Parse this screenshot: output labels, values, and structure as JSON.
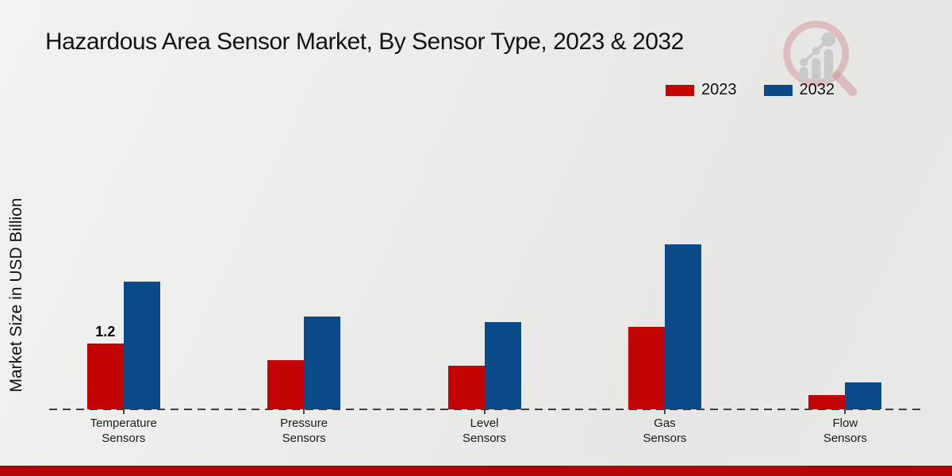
{
  "title": "Hazardous Area Sensor Market, By Sensor Type, 2023 & 2032",
  "ylabel": "Market Size in USD Billion",
  "colors": {
    "bar_2023": "#c20404",
    "bar_2032": "#0a4a88",
    "footer_strip": "#b50404",
    "baseline": "#3d3d3d",
    "watermark_ring": "#c97a83",
    "watermark_gray": "#c6c6c6"
  },
  "legend": {
    "position": "top-right"
  },
  "chart_data": {
    "type": "bar",
    "title": "Hazardous Area Sensor Market, By Sensor Type, 2023 & 2032",
    "xlabel": "",
    "ylabel": "Market Size in USD Billion",
    "categories": [
      "Temperature Sensors",
      "Pressure Sensors",
      "Level Sensors",
      "Gas Sensors",
      "Flow Sensors"
    ],
    "series": [
      {
        "name": "2023",
        "color": "#c20404",
        "values": [
          1.2,
          0.9,
          0.8,
          1.5,
          0.26
        ]
      },
      {
        "name": "2032",
        "color": "#0a4a88",
        "values": [
          2.33,
          1.7,
          1.6,
          3.02,
          0.49
        ]
      }
    ],
    "annotations": [
      {
        "category": "Temperature Sensors",
        "series": "2023",
        "text": "1.2"
      }
    ],
    "ylim": [
      0,
      3.5
    ],
    "grid": false,
    "axis_line_style": "dashed",
    "legend_position": "top-right"
  }
}
